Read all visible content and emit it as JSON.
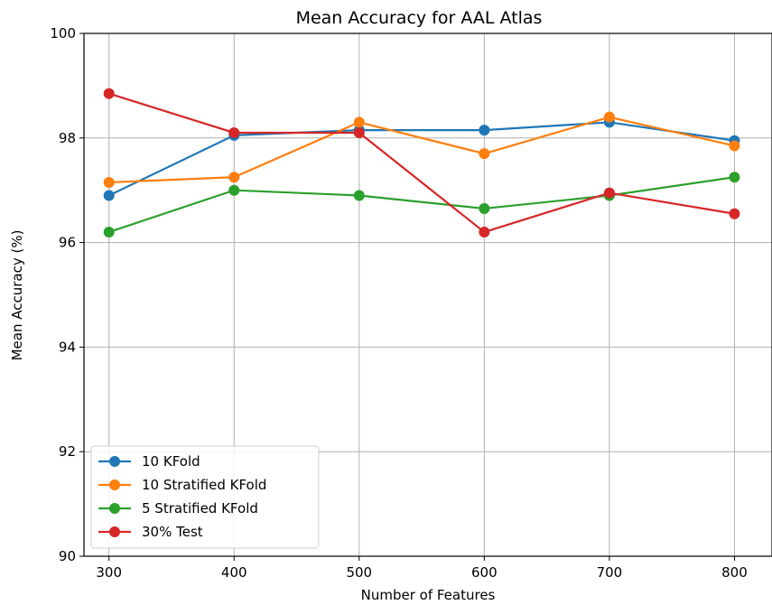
{
  "chart_data": {
    "type": "line",
    "title": "Mean Accuracy for AAL Atlas",
    "xlabel": "Number of Features",
    "ylabel": "Mean Accuracy (%)",
    "x": [
      300,
      400,
      500,
      600,
      700,
      800
    ],
    "xlim": [
      280,
      830
    ],
    "ylim": [
      90,
      100
    ],
    "xticks": [
      "300",
      "400",
      "500",
      "600",
      "700",
      "800"
    ],
    "yticks": [
      "90",
      "92",
      "94",
      "96",
      "98",
      "100"
    ],
    "grid": true,
    "legend_position": "lower-left",
    "series": [
      {
        "name": "10 KFold",
        "color": "#1f77b4",
        "values": [
          96.9,
          98.05,
          98.15,
          98.15,
          98.3,
          97.95
        ]
      },
      {
        "name": "10 Stratified KFold",
        "color": "#ff7f0e",
        "values": [
          97.15,
          97.25,
          98.3,
          97.7,
          98.4,
          97.85
        ]
      },
      {
        "name": "5 Stratified KFold",
        "color": "#2ca02c",
        "values": [
          96.2,
          97.0,
          96.9,
          96.65,
          96.9,
          97.25
        ]
      },
      {
        "name": "30% Test",
        "color": "#d62728",
        "values": [
          98.85,
          98.1,
          98.1,
          96.2,
          96.95,
          96.55
        ]
      }
    ]
  }
}
